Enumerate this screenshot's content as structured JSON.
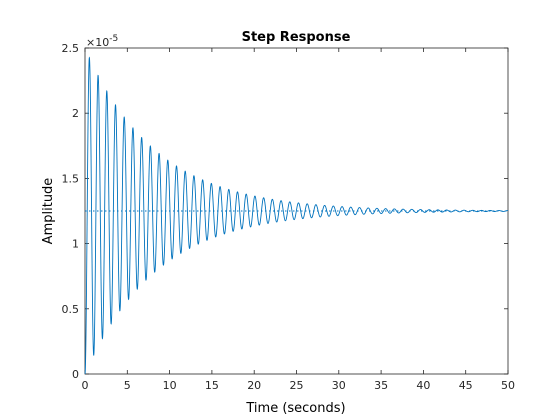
{
  "chart_data": {
    "type": "line",
    "title": "Step Response",
    "xlabel": "Time (seconds)",
    "ylabel": "Amplitude",
    "xlim": [
      0,
      50
    ],
    "ylim": [
      0,
      2.5
    ],
    "y_exponent_label": "×10",
    "y_exponent_power": "-5",
    "grid": false,
    "xticks": [
      "0",
      "5",
      "10",
      "15",
      "20",
      "25",
      "30",
      "35",
      "40",
      "45",
      "50"
    ],
    "yticks": [
      "0",
      "0.5",
      "1",
      "1.5",
      "2",
      "2.5"
    ],
    "series": [
      {
        "style": "solid",
        "color": "#0072BD",
        "steady_state": 1.25,
        "first_peak": 2.26,
        "first_trough": 0.3,
        "oscillation_period": 1.03,
        "settling_time": 36,
        "x_end": 50
      },
      {
        "style": "dotted",
        "color": "#0072BD",
        "y": 1.25,
        "x_range": [
          0,
          50
        ]
      }
    ]
  }
}
